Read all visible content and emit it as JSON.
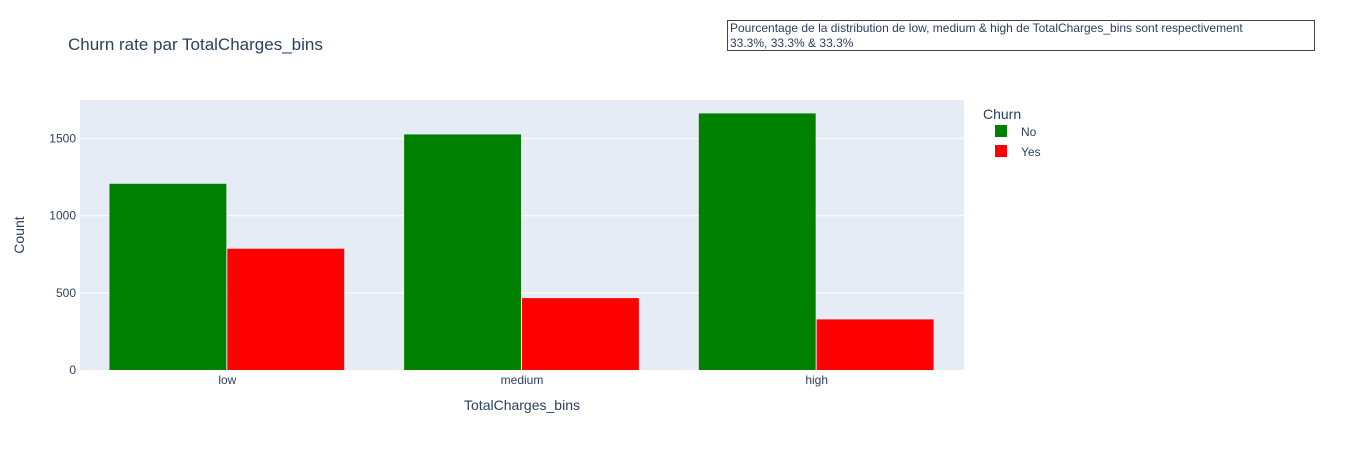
{
  "chart_data": {
    "type": "bar",
    "barmode": "group",
    "title": "Churn rate par TotalCharges_bins",
    "xlabel": "TotalCharges_bins",
    "ylabel": "Count",
    "categories": [
      "low",
      "medium",
      "high"
    ],
    "series": [
      {
        "name": "No",
        "color": "#008000",
        "values": [
          1207,
          1527,
          1663
        ]
      },
      {
        "name": "Yes",
        "color": "#ff0000",
        "values": [
          786,
          466,
          328
        ]
      }
    ],
    "ylim": [
      0,
      1750
    ],
    "yticks": [
      0,
      500,
      1000,
      1500
    ],
    "grid": true,
    "legend": {
      "title": "Churn",
      "placement": "top-right"
    },
    "annotation": {
      "line1": "Pourcentage de la distribution de low, medium & high de TotalCharges_bins sont respectivement",
      "line2": "33.3%, 33.3% & 33.3%"
    },
    "colors": {
      "plot_bg": "#e5ecf6",
      "grid": "#ffffff",
      "text": "#2a3f5f"
    }
  }
}
